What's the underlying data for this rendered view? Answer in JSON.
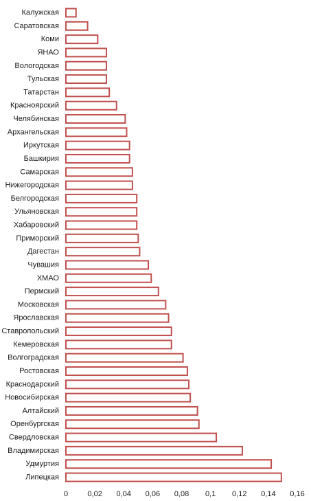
{
  "chart_data": {
    "type": "bar",
    "orientation": "horizontal",
    "title": "",
    "xlabel": "",
    "ylabel": "",
    "xlim": [
      0,
      0.16
    ],
    "x_ticks": [
      "0",
      "0,02",
      "0,04",
      "0,06",
      "0,08",
      "0,1",
      "0,12",
      "0,14",
      "0,16"
    ],
    "grid": false,
    "legend": "none",
    "bar_color": "#c0504d",
    "bar_fill": "#ffffff",
    "categories": [
      "Калужская",
      "Саратовская",
      "Коми",
      "ЯНАО",
      "Вологодская",
      "Тульская",
      "Татарстан",
      "Красноярский",
      "Челябинская",
      "Архангельская",
      "Иркутская",
      "Башкирия",
      "Самарская",
      "Нижегородская",
      "Белгородская",
      "Ульяновская",
      "Хабаровский",
      "Приморский",
      "Дагестан",
      "Чувашия",
      "ХМАО",
      "Пермский",
      "Московская",
      "Ярославская",
      "Ставропольский",
      "Кемеровская",
      "Волгоградская",
      "Ростовская",
      "Краснодарский",
      "Новосибирская",
      "Алтайский",
      "Оренбургская",
      "Свердловская",
      "Владимирская",
      "Удмуртия",
      "Липецкая"
    ],
    "values": [
      0.007,
      0.015,
      0.022,
      0.028,
      0.028,
      0.028,
      0.03,
      0.035,
      0.041,
      0.042,
      0.044,
      0.044,
      0.046,
      0.046,
      0.049,
      0.049,
      0.049,
      0.05,
      0.051,
      0.057,
      0.059,
      0.064,
      0.069,
      0.071,
      0.073,
      0.073,
      0.081,
      0.084,
      0.085,
      0.086,
      0.091,
      0.092,
      0.104,
      0.122,
      0.142,
      0.149
    ]
  }
}
